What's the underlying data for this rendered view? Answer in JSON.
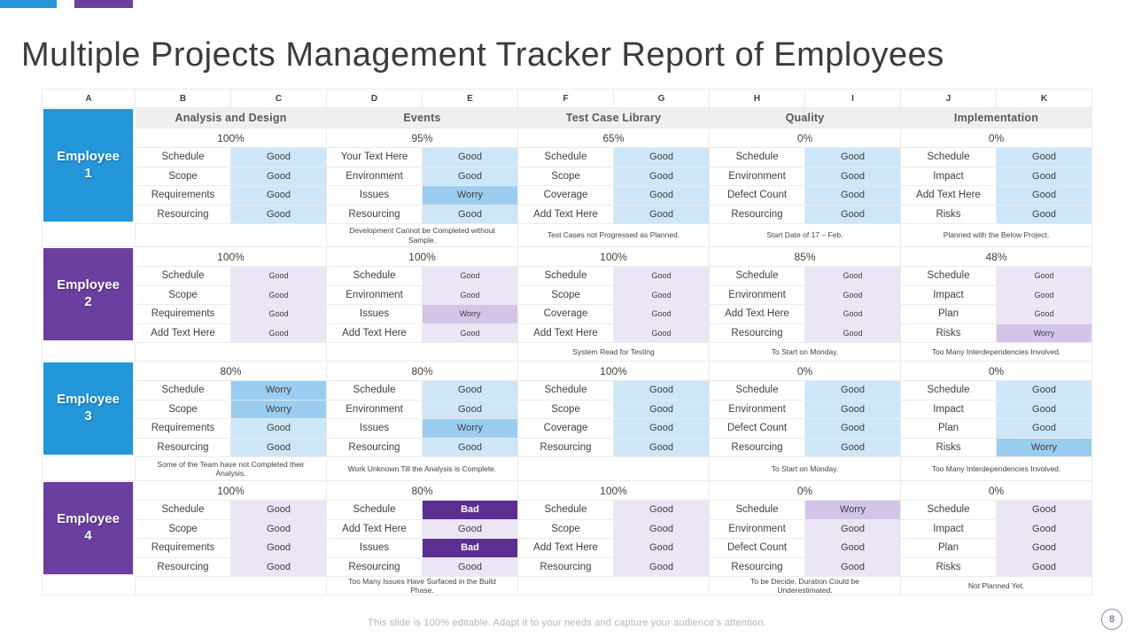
{
  "slide": {
    "title": "Multiple Projects Management Tracker Report of Employees",
    "footer": "This slide is 100% editable. Adapt it to your needs and capture your audience's attention.",
    "page_number": "8"
  },
  "colors": {
    "blue": "#2397d9",
    "purple": "#6b3fa0",
    "bad": "#5c2e92",
    "blue_good": "#cde6f8",
    "blue_worry": "#9bcdf0",
    "purple_good": "#ebe5f5",
    "purple_worry": "#d3c4e8",
    "section_header_bg": "#efefef"
  },
  "table": {
    "column_letters": [
      "A",
      "B",
      "C",
      "D",
      "E",
      "F",
      "G",
      "H",
      "I",
      "J",
      "K"
    ],
    "sections": [
      "Analysis and Design",
      "Events",
      "Test Case Library",
      "Quality",
      "Implementation"
    ],
    "employees": [
      {
        "name": "Employee 1",
        "theme": "blue",
        "sections": [
          {
            "percent": "100%",
            "note": "",
            "items": [
              {
                "label": "Schedule",
                "status": "Good"
              },
              {
                "label": "Scope",
                "status": "Good"
              },
              {
                "label": "Requirements",
                "status": "Good"
              },
              {
                "label": "Resourcing",
                "status": "Good"
              }
            ]
          },
          {
            "percent": "95%",
            "note": "Development Cannot be Completed without Sample.",
            "items": [
              {
                "label": "Your Text Here",
                "status": "Good"
              },
              {
                "label": "Environment",
                "status": "Good"
              },
              {
                "label": "Issues",
                "status": "Worry"
              },
              {
                "label": "Resourcing",
                "status": "Good"
              }
            ]
          },
          {
            "percent": "65%",
            "note": "Test Cases not Progressed as Planned.",
            "items": [
              {
                "label": "Schedule",
                "status": "Good"
              },
              {
                "label": "Scope",
                "status": "Good"
              },
              {
                "label": "Coverage",
                "status": "Good"
              },
              {
                "label": "Add Text Here",
                "status": "Good"
              }
            ]
          },
          {
            "percent": "0%",
            "note": "Start Date of 17 – Feb.",
            "items": [
              {
                "label": "Schedule",
                "status": "Good"
              },
              {
                "label": "Environment",
                "status": "Good"
              },
              {
                "label": "Defect Count",
                "status": "Good"
              },
              {
                "label": "Resourcing",
                "status": "Good"
              }
            ]
          },
          {
            "percent": "0%",
            "note": "Planned with the Below Project.",
            "items": [
              {
                "label": "Schedule",
                "status": "Good"
              },
              {
                "label": "Impact",
                "status": "Good"
              },
              {
                "label": "Add Text Here",
                "status": "Good"
              },
              {
                "label": "Risks",
                "status": "Good"
              }
            ]
          }
        ]
      },
      {
        "name": "Employee 2",
        "theme": "purple",
        "small_status": true,
        "sections": [
          {
            "percent": "100%",
            "note": "",
            "items": [
              {
                "label": "Schedule",
                "status": "Good"
              },
              {
                "label": "Scope",
                "status": "Good"
              },
              {
                "label": "Requirements",
                "status": "Good"
              },
              {
                "label": "Add Text Here",
                "status": "Good"
              }
            ]
          },
          {
            "percent": "100%",
            "note": "",
            "items": [
              {
                "label": "Schedule",
                "status": "Good"
              },
              {
                "label": "Environment",
                "status": "Good"
              },
              {
                "label": "Issues",
                "status": "Worry"
              },
              {
                "label": "Add Text Here",
                "status": "Good"
              }
            ]
          },
          {
            "percent": "100%",
            "note": "System Read for Testing",
            "items": [
              {
                "label": "Schedule",
                "status": "Good"
              },
              {
                "label": "Scope",
                "status": "Good"
              },
              {
                "label": "Coverage",
                "status": "Good"
              },
              {
                "label": "Add Text Here",
                "status": "Good"
              }
            ]
          },
          {
            "percent": "85%",
            "note": "To Start on Monday.",
            "items": [
              {
                "label": "Schedule",
                "status": "Good"
              },
              {
                "label": "Environment",
                "status": "Good"
              },
              {
                "label": "Add Text Here",
                "status": "Good"
              },
              {
                "label": "Resourcing",
                "status": "Good"
              }
            ]
          },
          {
            "percent": "48%",
            "note": "Too Many Interdependencies Involved.",
            "items": [
              {
                "label": "Schedule",
                "status": "Good"
              },
              {
                "label": "Impact",
                "status": "Good"
              },
              {
                "label": "Plan",
                "status": "Good"
              },
              {
                "label": "Risks",
                "status": "Worry"
              }
            ]
          }
        ]
      },
      {
        "name": "Employee 3",
        "theme": "blue",
        "sections": [
          {
            "percent": "80%",
            "note": "Some of the Team have not Completed their Analysis.",
            "items": [
              {
                "label": "Schedule",
                "status": "Worry"
              },
              {
                "label": "Scope",
                "status": "Worry"
              },
              {
                "label": "Requirements",
                "status": "Good"
              },
              {
                "label": "Resourcing",
                "status": "Good"
              }
            ]
          },
          {
            "percent": "80%",
            "note": "Work Unknown Till the Analysis is Complete.",
            "items": [
              {
                "label": "Schedule",
                "status": "Good"
              },
              {
                "label": "Environment",
                "status": "Good"
              },
              {
                "label": "Issues",
                "status": "Worry"
              },
              {
                "label": "Resourcing",
                "status": "Good"
              }
            ]
          },
          {
            "percent": "100%",
            "note": "",
            "items": [
              {
                "label": "Schedule",
                "status": "Good"
              },
              {
                "label": "Scope",
                "status": "Good"
              },
              {
                "label": "Coverage",
                "status": "Good"
              },
              {
                "label": "Resourcing",
                "status": "Good"
              }
            ]
          },
          {
            "percent": "0%",
            "note": "To Start on Monday.",
            "items": [
              {
                "label": "Schedule",
                "status": "Good"
              },
              {
                "label": "Environment",
                "status": "Good"
              },
              {
                "label": "Defect Count",
                "status": "Good"
              },
              {
                "label": "Resourcing",
                "status": "Good"
              }
            ]
          },
          {
            "percent": "0%",
            "note": "Too Many Interdependencies Involved.",
            "items": [
              {
                "label": "Schedule",
                "status": "Good"
              },
              {
                "label": "Impact",
                "status": "Good"
              },
              {
                "label": "Plan",
                "status": "Good"
              },
              {
                "label": "Risks",
                "status": "Worry"
              }
            ]
          }
        ]
      },
      {
        "name": "Employee 4",
        "theme": "purple",
        "sections": [
          {
            "percent": "100%",
            "note": "",
            "items": [
              {
                "label": "Schedule",
                "status": "Good"
              },
              {
                "label": "Scope",
                "status": "Good"
              },
              {
                "label": "Requirements",
                "status": "Good"
              },
              {
                "label": "Resourcing",
                "status": "Good"
              }
            ]
          },
          {
            "percent": "80%",
            "note": "Too Many Issues Have Surfaced in the Build Phase.",
            "items": [
              {
                "label": "Schedule",
                "status": "Bad"
              },
              {
                "label": "Add Text Here",
                "status": "Good"
              },
              {
                "label": "Issues",
                "status": "Bad"
              },
              {
                "label": "Resourcing",
                "status": "Good"
              }
            ]
          },
          {
            "percent": "100%",
            "note": "",
            "items": [
              {
                "label": "Schedule",
                "status": "Good"
              },
              {
                "label": "Scope",
                "status": "Good"
              },
              {
                "label": "Add Text Here",
                "status": "Good"
              },
              {
                "label": "Resourcing",
                "status": "Good"
              }
            ]
          },
          {
            "percent": "0%",
            "note": "To be Decide. Duration Could be Underestimated.",
            "items": [
              {
                "label": "Schedule",
                "status": "Worry"
              },
              {
                "label": "Environment",
                "status": "Good"
              },
              {
                "label": "Defect Count",
                "status": "Good"
              },
              {
                "label": "Resourcing",
                "status": "Good"
              }
            ]
          },
          {
            "percent": "0%",
            "note": "Not Planned Yet.",
            "items": [
              {
                "label": "Schedule",
                "status": "Good"
              },
              {
                "label": "Impact",
                "status": "Good"
              },
              {
                "label": "Plan",
                "status": "Good"
              },
              {
                "label": "Risks",
                "status": "Good"
              }
            ]
          }
        ]
      }
    ]
  }
}
